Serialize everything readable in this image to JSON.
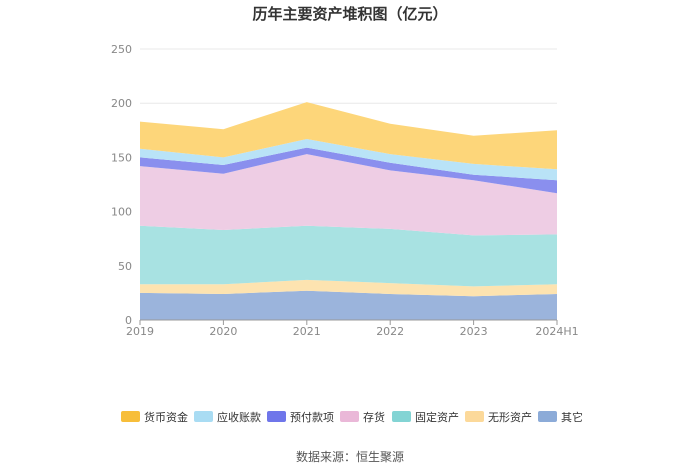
{
  "source": "数据来源：恒生聚源",
  "chart_data": {
    "type": "area",
    "stacked": true,
    "title": "历年主要资产堆积图（亿元）",
    "xlabel": "",
    "ylabel": "",
    "x": [
      "2019",
      "2020",
      "2021",
      "2022",
      "2023",
      "2024H1"
    ],
    "ylim": [
      0,
      250
    ],
    "yticks": [
      0,
      50,
      100,
      150,
      200,
      250
    ],
    "grid": true,
    "legend_position": "bottom",
    "series": [
      {
        "name": "其它",
        "color": "#9bb4dc",
        "values": [
          25,
          24,
          27,
          24,
          22,
          24
        ]
      },
      {
        "name": "无形资产",
        "color": "#fde3b0",
        "values": [
          8,
          9,
          10,
          10,
          9,
          9
        ]
      },
      {
        "name": "固定资产",
        "color": "#a8e2e2",
        "values": [
          54,
          50,
          50,
          50,
          47,
          46
        ]
      },
      {
        "name": "存货",
        "color": "#eecde4",
        "values": [
          55,
          52,
          66,
          54,
          51,
          38
        ]
      },
      {
        "name": "预付款项",
        "color": "#8a8fee",
        "values": [
          8,
          8,
          6,
          7,
          5,
          12
        ]
      },
      {
        "name": "应收账款",
        "color": "#b9e3f7",
        "values": [
          8,
          7,
          8,
          8,
          10,
          10
        ]
      },
      {
        "name": "货币资金",
        "color": "#fdd67a",
        "values": [
          25,
          26,
          34,
          28,
          26,
          36
        ]
      }
    ],
    "legend_order": [
      "货币资金",
      "应收账款",
      "预付款项",
      "存货",
      "固定资产",
      "无形资产",
      "其它"
    ],
    "legend_colors": {
      "货币资金": "#f7be3a",
      "应收账款": "#a9dcf3",
      "预付款项": "#6f76ea",
      "存货": "#eab8d8",
      "固定资产": "#83d4d4",
      "无形资产": "#fcd99a",
      "其它": "#8cabd8"
    }
  }
}
